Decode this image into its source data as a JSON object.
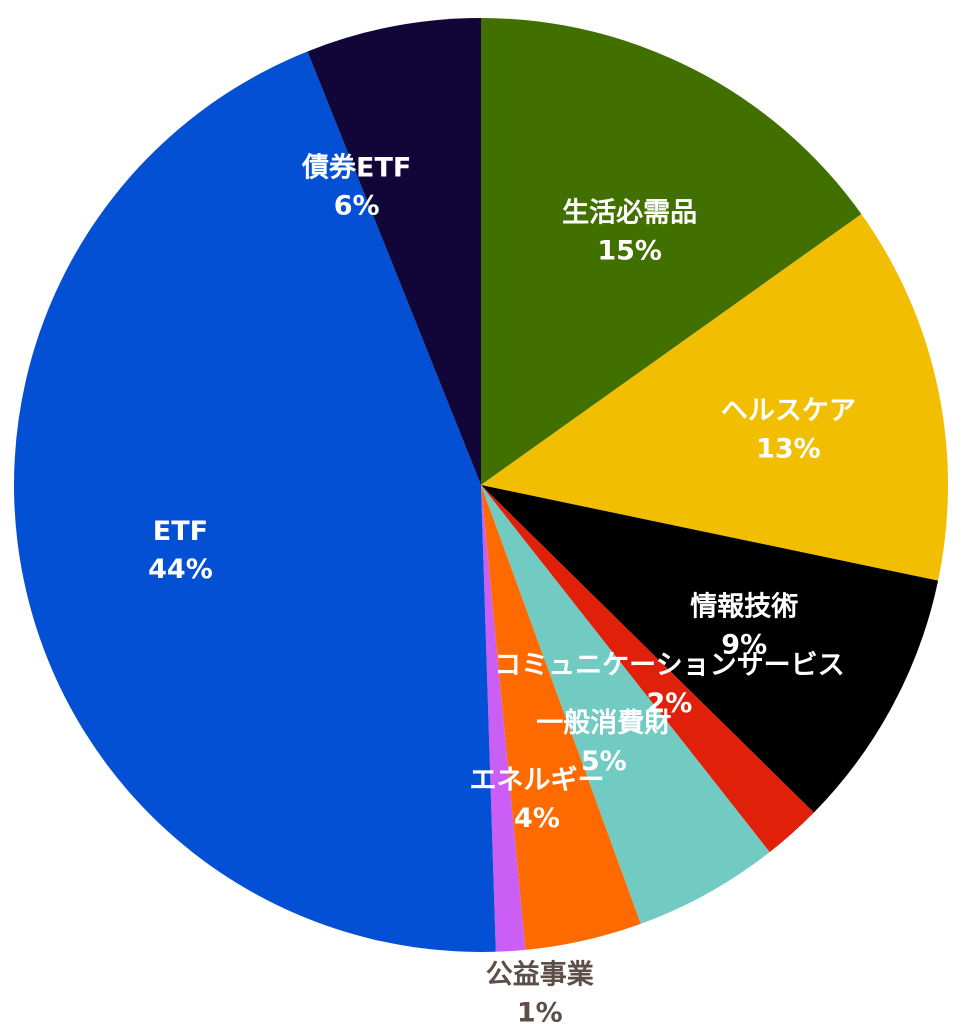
{
  "chart_data": {
    "type": "pie",
    "title": "",
    "start": "top, clockwise",
    "slices": [
      {
        "label": "生活必需品",
        "value": 15,
        "value_label": "15%",
        "color": "#417000",
        "text_color": "#ffffff"
      },
      {
        "label": "ヘルスケア",
        "value": 13,
        "value_label": "13%",
        "color": "#f1be02",
        "text_color": "#ffffff"
      },
      {
        "label": "情報技術",
        "value": 9,
        "value_label": "9%",
        "color": "#000000",
        "text_color": "#ffffff"
      },
      {
        "label": "コミュニケーションサービス",
        "value": 2,
        "value_label": "2%",
        "color": "#e02008",
        "text_color": "#ffffff"
      },
      {
        "label": "一般消費財",
        "value": 5,
        "value_label": "5%",
        "color": "#71cbc3",
        "text_color": "#ffffff"
      },
      {
        "label": "エネルギー",
        "value": 4,
        "value_label": "4%",
        "color": "#ff6a00",
        "text_color": "#ffffff"
      },
      {
        "label": "公益事業",
        "value": 1,
        "value_label": "1%",
        "color": "#cb5ff5",
        "text_color": "#5d4f47"
      },
      {
        "label": "ETF",
        "value": 44,
        "value_label": "44%",
        "color": "#0350d5",
        "text_color": "#ffffff"
      },
      {
        "label": "債券ETF",
        "value": 6,
        "value_label": "6%",
        "color": "#120638",
        "text_color": "#ffffff"
      }
    ]
  }
}
